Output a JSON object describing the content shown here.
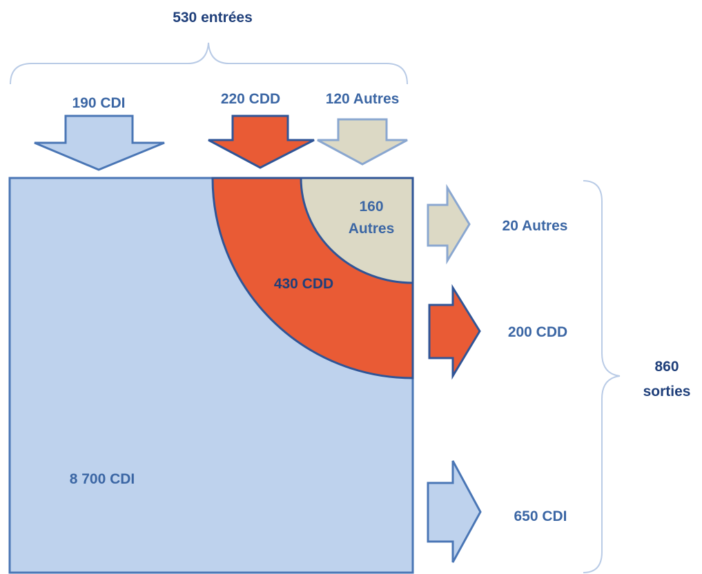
{
  "entries": {
    "total_label": "530 entrées",
    "cdi_label": "190 CDI",
    "cdd_label": "220 CDD",
    "autres_label": "120 Autres"
  },
  "stock": {
    "cdi_label": "8 700 CDI",
    "cdd_label": "430 CDD",
    "autres_line1": "160",
    "autres_line2": "Autres"
  },
  "exits": {
    "autres_label": "20 Autres",
    "cdd_label": "200 CDD",
    "cdi_label": "650 CDI",
    "total_line1": "860",
    "total_line2": "sorties"
  },
  "colors": {
    "cdi_fill": "#bed2ed",
    "cdi_stroke": "#4a76b5",
    "cdd_fill": "#e95b35",
    "cdd_stroke": "#2f5597",
    "autres_fill": "#dcd9c5",
    "autres_stroke": "#8aa7d0",
    "brace": "#b9cbe6"
  }
}
